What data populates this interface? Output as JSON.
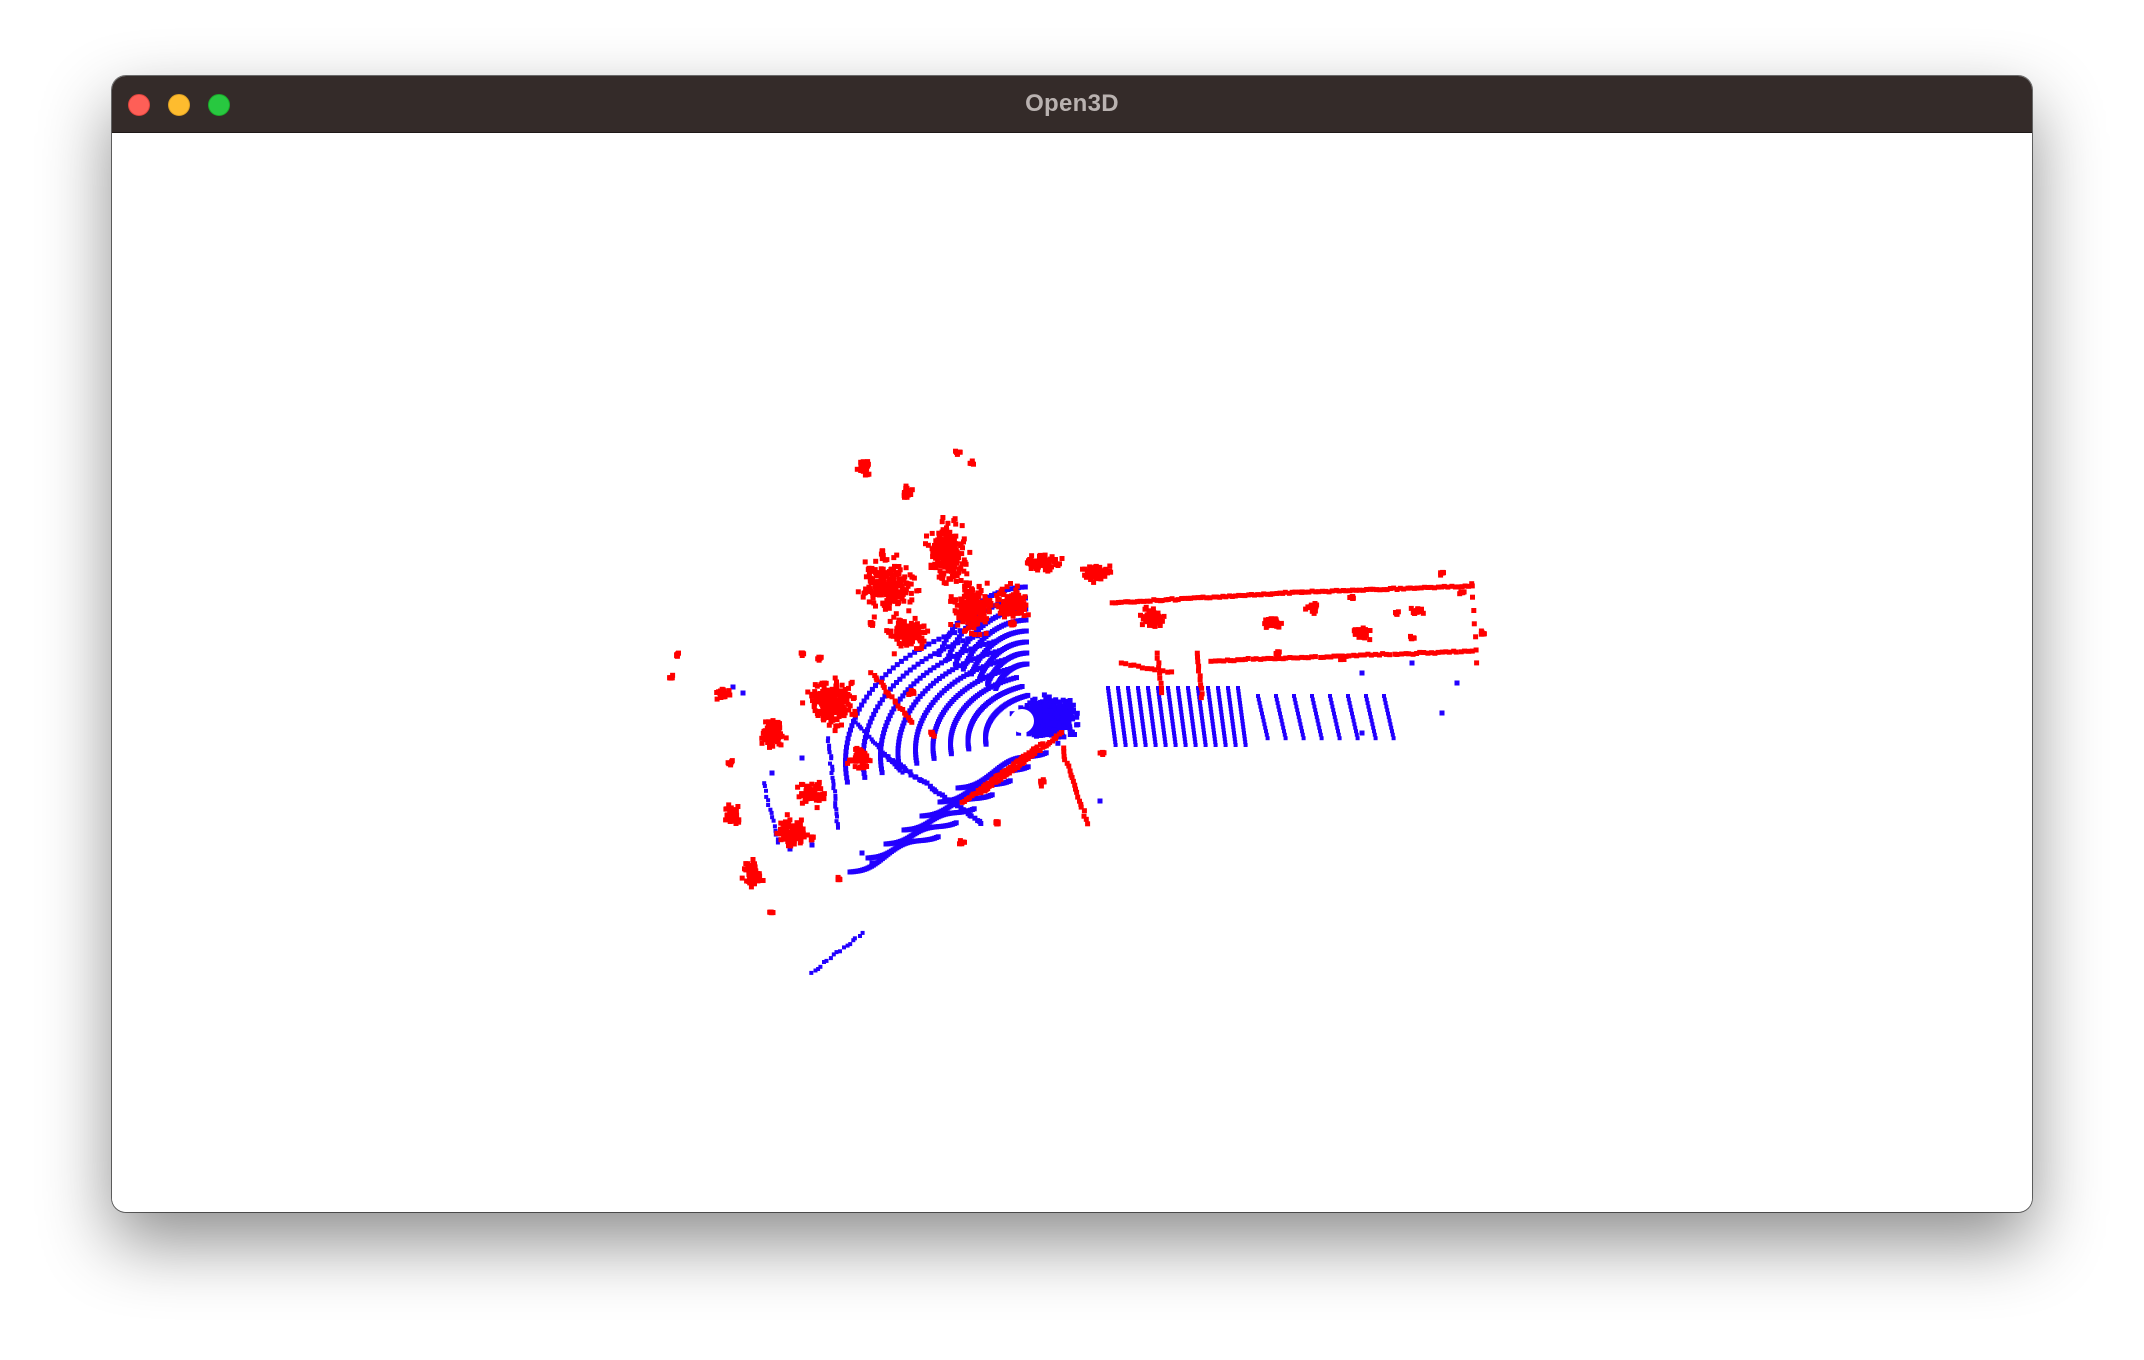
{
  "window": {
    "title": "Open3D",
    "controls": {
      "close": "close-icon",
      "minimize": "minimize-icon",
      "zoom": "zoom-icon"
    }
  },
  "point_cloud": {
    "colors": {
      "obstacle": "#ff0000",
      "ground": "#2200ff",
      "background": "#ffffff"
    }
  }
}
